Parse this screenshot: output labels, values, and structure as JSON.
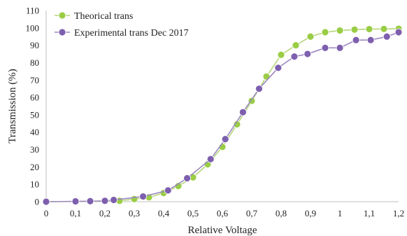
{
  "chart_data": {
    "type": "line",
    "title": "",
    "xlabel": "Relative Voltage",
    "ylabel": "Transmission (%)",
    "xlim": [
      0,
      1.2
    ],
    "ylim": [
      0,
      110
    ],
    "x_ticks": [
      0,
      0.1,
      0.2,
      0.3,
      0.4,
      0.5,
      0.6,
      0.7,
      0.8,
      0.9,
      1,
      1.1,
      1.2
    ],
    "x_tick_labels": [
      "0",
      "0,1",
      "0,2",
      "0,3",
      "0,4",
      "0,5",
      "0,6",
      "0,7",
      "0,8",
      "0,9",
      "1",
      "1,1",
      "1,2"
    ],
    "y_ticks": [
      0,
      10,
      20,
      30,
      40,
      50,
      60,
      70,
      80,
      90,
      100,
      110
    ],
    "y_tick_labels": [
      "0",
      "10",
      "20",
      "30",
      "40",
      "50",
      "60",
      "70",
      "80",
      "90",
      "100",
      "110"
    ],
    "grid": false,
    "legend_position": "top-left",
    "series": [
      {
        "name": "Theorical trans",
        "color": "#8cbf3f",
        "marker_fill": "#9acd45",
        "line_color": "#b5d67a",
        "x": [
          0,
          0.1,
          0.15,
          0.2,
          0.25,
          0.3,
          0.35,
          0.4,
          0.45,
          0.5,
          0.55,
          0.6,
          0.65,
          0.7,
          0.75,
          0.8,
          0.85,
          0.9,
          0.95,
          1.0,
          1.05,
          1.1,
          1.15,
          1.2
        ],
        "y": [
          0,
          0.1,
          0.2,
          0.3,
          0.5,
          1.5,
          2.5,
          5,
          9,
          14,
          21.5,
          31.5,
          44.5,
          58,
          72,
          84.5,
          90,
          95,
          97.5,
          98.5,
          99,
          99.3,
          99.4,
          99.5
        ]
      },
      {
        "name": "Experimental trans Dec 2017",
        "color": "#7a5aa8",
        "marker_fill": "#7d5fae",
        "line_color": "#9c88c0",
        "x": [
          0,
          0.1,
          0.15,
          0.2,
          0.23,
          0.33,
          0.415,
          0.48,
          0.56,
          0.61,
          0.67,
          0.725,
          0.79,
          0.845,
          0.89,
          0.95,
          1.0,
          1.055,
          1.105,
          1.16,
          1.2
        ],
        "y": [
          0,
          0.2,
          0.3,
          0.5,
          1,
          3,
          6.5,
          13.5,
          24.5,
          36,
          51.5,
          65,
          77,
          83.5,
          85,
          88.5,
          88.5,
          93,
          93,
          95,
          97.5
        ]
      }
    ]
  }
}
